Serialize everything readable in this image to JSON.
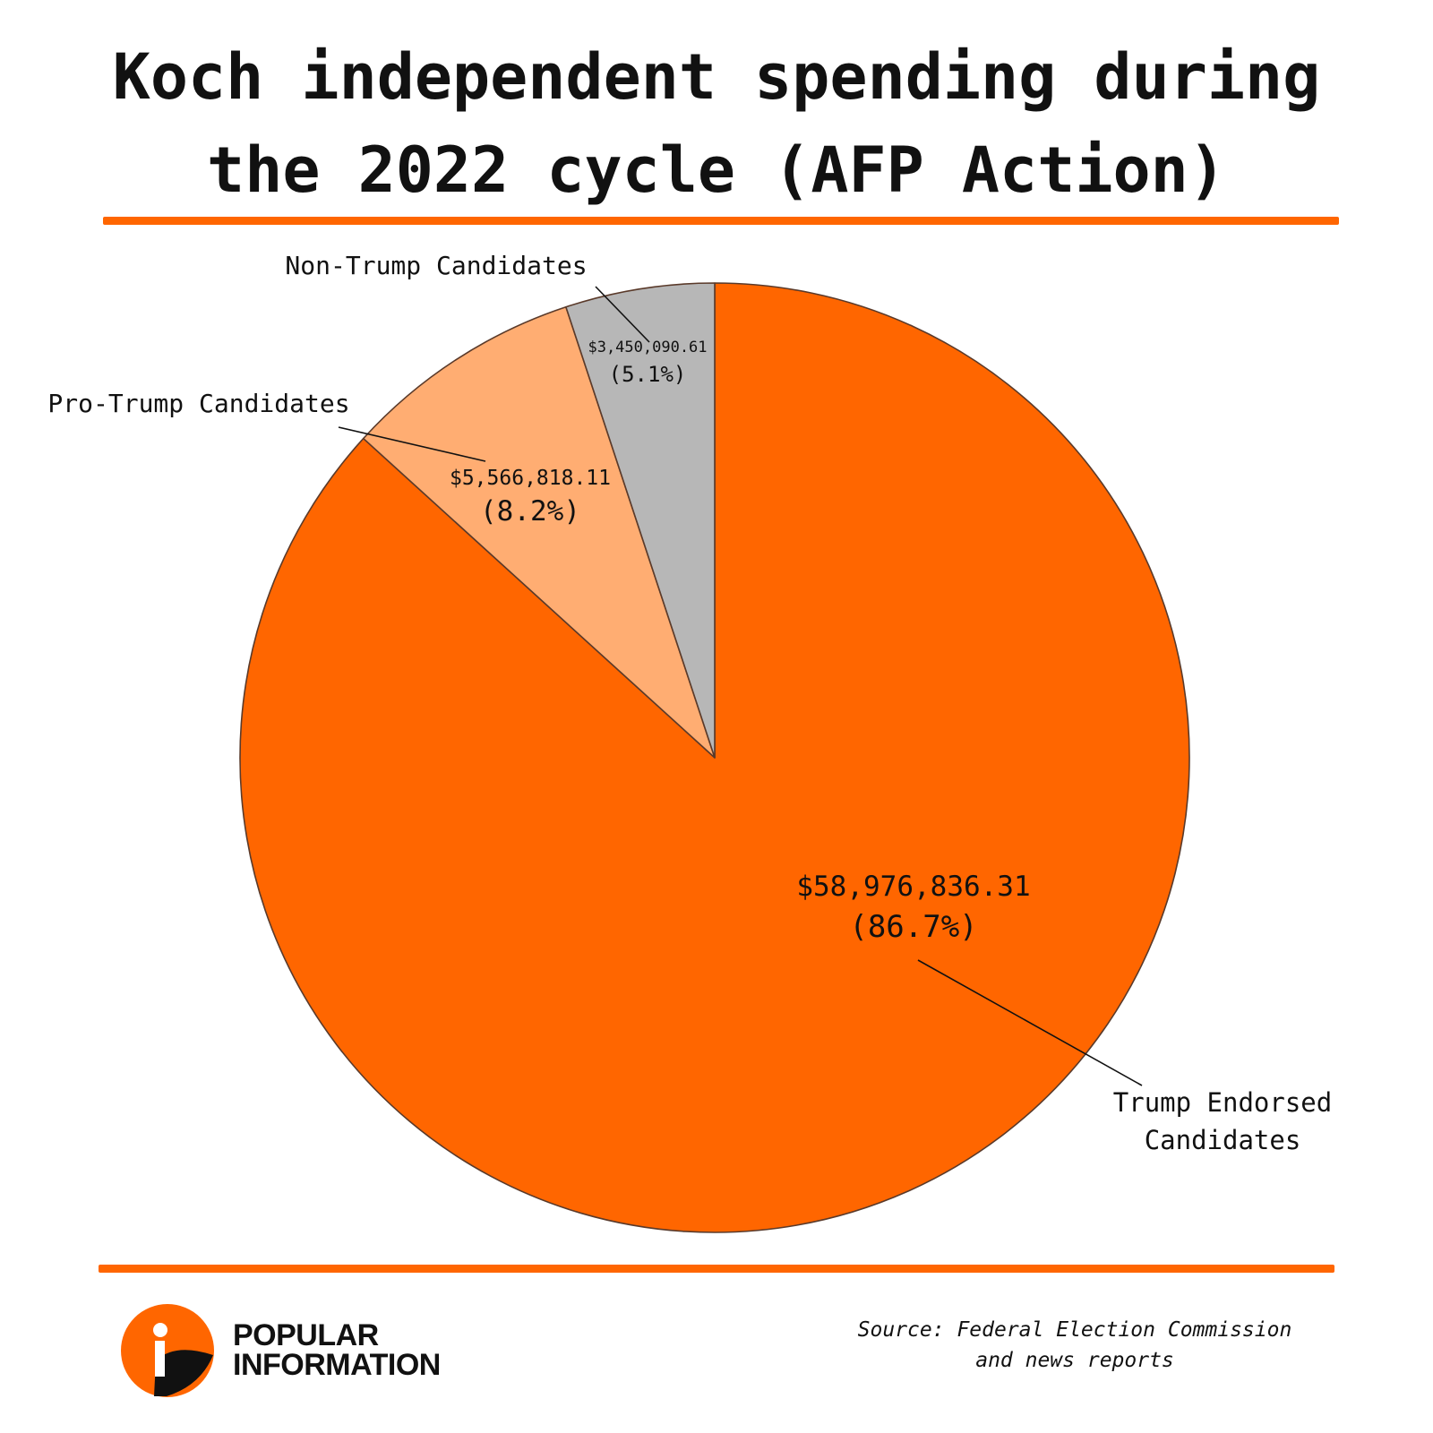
{
  "title_lines": [
    "Koch independent spending during",
    "the 2022 cycle (AFP Action)"
  ],
  "colors": {
    "accent": "#ff6600",
    "trump_endorsed": "#ff6600",
    "pro_trump": "#ffad72",
    "non_trump": "#b7b7b7",
    "outline": "#5a3a2a",
    "text": "#111111"
  },
  "chart_data": {
    "type": "pie",
    "title": "Koch independent spending during the 2022 cycle (AFP Action)",
    "slices": [
      {
        "name": "Trump Endorsed Candidates",
        "name_lines": [
          "Trump Endorsed",
          "Candidates"
        ],
        "value": 58976836.31,
        "amount_label": "$58,976,836.31",
        "percent": 86.7,
        "percent_label": "(86.7%)",
        "color": "#ff6600"
      },
      {
        "name": "Pro-Trump Candidates",
        "name_lines": [
          "Pro-Trump Candidates"
        ],
        "value": 5566818.11,
        "amount_label": "$5,566,818.11",
        "percent": 8.2,
        "percent_label": "(8.2%)",
        "color": "#ffad72"
      },
      {
        "name": "Non-Trump Candidates",
        "name_lines": [
          "Non-Trump Candidates"
        ],
        "value": 3450090.61,
        "amount_label": "$3,450,090.61",
        "percent": 5.1,
        "percent_label": "(5.1%)",
        "color": "#b7b7b7"
      }
    ],
    "start_angle": "12 o'clock",
    "direction": "clockwise",
    "legend": "none"
  },
  "logo": {
    "lines": [
      "POPULAR",
      "INFORMATION"
    ],
    "icon": "info-i-icon"
  },
  "source_lines": [
    "Source: Federal Election Commission",
    "and news reports"
  ]
}
